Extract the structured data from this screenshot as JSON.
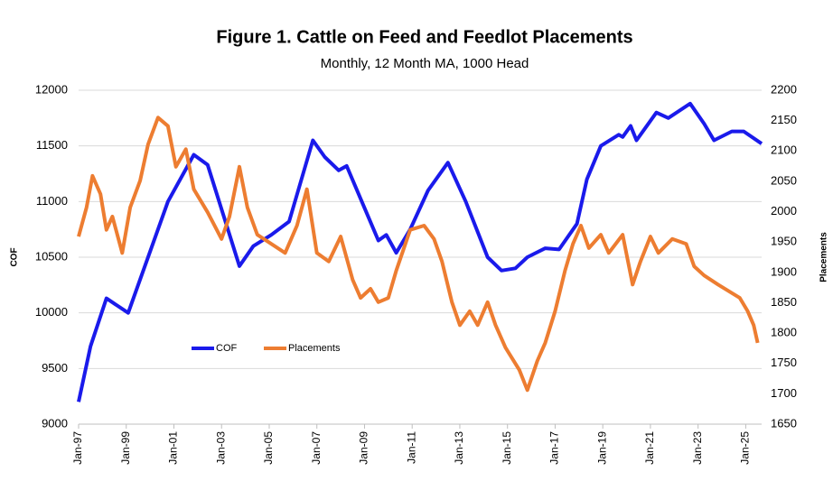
{
  "chart_data": {
    "type": "line",
    "title": "Figure 1. Cattle on Feed and Feedlot Placements",
    "subtitle": "Monthly, 12 Month MA, 1000 Head",
    "y_label": "COF",
    "y2_label": "Placements",
    "xlim": [
      "1997-01",
      "2025-09"
    ],
    "xticks": [
      {
        "value": "1997-01",
        "label": "Jan-97"
      },
      {
        "value": "1999-01",
        "label": "Jan-99"
      },
      {
        "value": "2001-01",
        "label": "Jan-01"
      },
      {
        "value": "2003-01",
        "label": "Jan-03"
      },
      {
        "value": "2005-01",
        "label": "Jan-05"
      },
      {
        "value": "2007-01",
        "label": "Jan-07"
      },
      {
        "value": "2009-01",
        "label": "Jan-09"
      },
      {
        "value": "2011-01",
        "label": "Jan-11"
      },
      {
        "value": "2013-01",
        "label": "Jan-13"
      },
      {
        "value": "2015-01",
        "label": "Jan-15"
      },
      {
        "value": "2017-01",
        "label": "Jan-17"
      },
      {
        "value": "2019-01",
        "label": "Jan-19"
      },
      {
        "value": "2021-01",
        "label": "Jan-21"
      },
      {
        "value": "2023-01",
        "label": "Jan-23"
      },
      {
        "value": "2025-01",
        "label": "Jan-25"
      }
    ],
    "ylim": [
      9000,
      12000
    ],
    "yticks": [
      9000,
      9500,
      10000,
      10500,
      11000,
      11500,
      12000
    ],
    "y2lim": [
      1650,
      2200
    ],
    "y2ticks": [
      1650,
      1700,
      1750,
      1800,
      1850,
      1900,
      1950,
      2000,
      2050,
      2100,
      2150,
      2200
    ],
    "grid": true,
    "legend": "lower left",
    "series": [
      {
        "name": "COF",
        "color": "#1a1aeb",
        "x": [
          "1997-01",
          "1997-07",
          "1998-03",
          "1999-02",
          "2000-10",
          "2001-11",
          "2002-06",
          "2003-10",
          "2004-05",
          "2005-02",
          "2005-11",
          "2006-11",
          "2007-05",
          "2007-12",
          "2008-04",
          "2009-02",
          "2009-08",
          "2009-12",
          "2010-05",
          "2010-12",
          "2011-09",
          "2012-07",
          "2013-04",
          "2014-03",
          "2014-10",
          "2015-05",
          "2015-11",
          "2016-08",
          "2017-03",
          "2017-12",
          "2018-05",
          "2018-12",
          "2019-09",
          "2019-11",
          "2020-03",
          "2020-06",
          "2020-10",
          "2021-04",
          "2021-10",
          "2022-09",
          "2023-04",
          "2023-09",
          "2024-06",
          "2024-12",
          "2025-09"
        ],
        "values": [
          9200,
          9700,
          10130,
          10000,
          11000,
          11420,
          11330,
          10420,
          10600,
          10700,
          10820,
          11550,
          11400,
          11280,
          11320,
          10900,
          10650,
          10700,
          10540,
          10750,
          11100,
          11350,
          11000,
          10500,
          10380,
          10400,
          10500,
          10580,
          10570,
          10800,
          11200,
          11500,
          11600,
          11580,
          11680,
          11550,
          11650,
          11800,
          11750,
          11880,
          11700,
          11550,
          11630,
          11630,
          11520
        ]
      },
      {
        "name": "Placements",
        "color": "#ed7d31",
        "axis": "y2",
        "x": [
          "1997-01",
          "1997-05",
          "1997-08",
          "1997-12",
          "1998-03",
          "1998-06",
          "1998-11",
          "1999-03",
          "1999-08",
          "1999-12",
          "2000-05",
          "2000-10",
          "2001-02",
          "2001-07",
          "2001-11",
          "2002-06",
          "2003-01",
          "2003-05",
          "2003-10",
          "2004-02",
          "2004-07",
          "2005-02",
          "2005-09",
          "2006-03",
          "2006-08",
          "2007-01",
          "2007-07",
          "2008-01",
          "2008-07",
          "2008-11",
          "2009-04",
          "2009-08",
          "2010-01",
          "2010-05",
          "2010-12",
          "2011-07",
          "2011-12",
          "2012-04",
          "2012-09",
          "2013-01",
          "2013-06",
          "2013-10",
          "2014-03",
          "2014-07",
          "2014-12",
          "2015-07",
          "2015-11",
          "2016-04",
          "2016-08",
          "2017-01",
          "2017-06",
          "2017-10",
          "2018-02",
          "2018-06",
          "2018-12",
          "2019-04",
          "2019-11",
          "2020-04",
          "2020-08",
          "2021-01",
          "2021-05",
          "2021-12",
          "2022-07",
          "2022-11",
          "2023-04",
          "2023-11",
          "2024-06",
          "2024-10",
          "2025-02",
          "2025-05",
          "2025-07"
        ],
        "values": [
          1959,
          2007,
          2059,
          2029,
          1970,
          1992,
          1932,
          2007,
          2051,
          2111,
          2155,
          2141,
          2074,
          2103,
          2037,
          1999,
          1955,
          1992,
          2074,
          2007,
          1962,
          1947,
          1932,
          1977,
          2037,
          1932,
          1918,
          1959,
          1888,
          1858,
          1873,
          1851,
          1858,
          1903,
          1970,
          1977,
          1955,
          1918,
          1851,
          1813,
          1836,
          1813,
          1851,
          1813,
          1776,
          1739,
          1706,
          1754,
          1784,
          1836,
          1903,
          1947,
          1977,
          1940,
          1962,
          1932,
          1962,
          1880,
          1918,
          1959,
          1932,
          1955,
          1947,
          1910,
          1895,
          1880,
          1866,
          1858,
          1836,
          1813,
          1784
        ]
      }
    ]
  }
}
